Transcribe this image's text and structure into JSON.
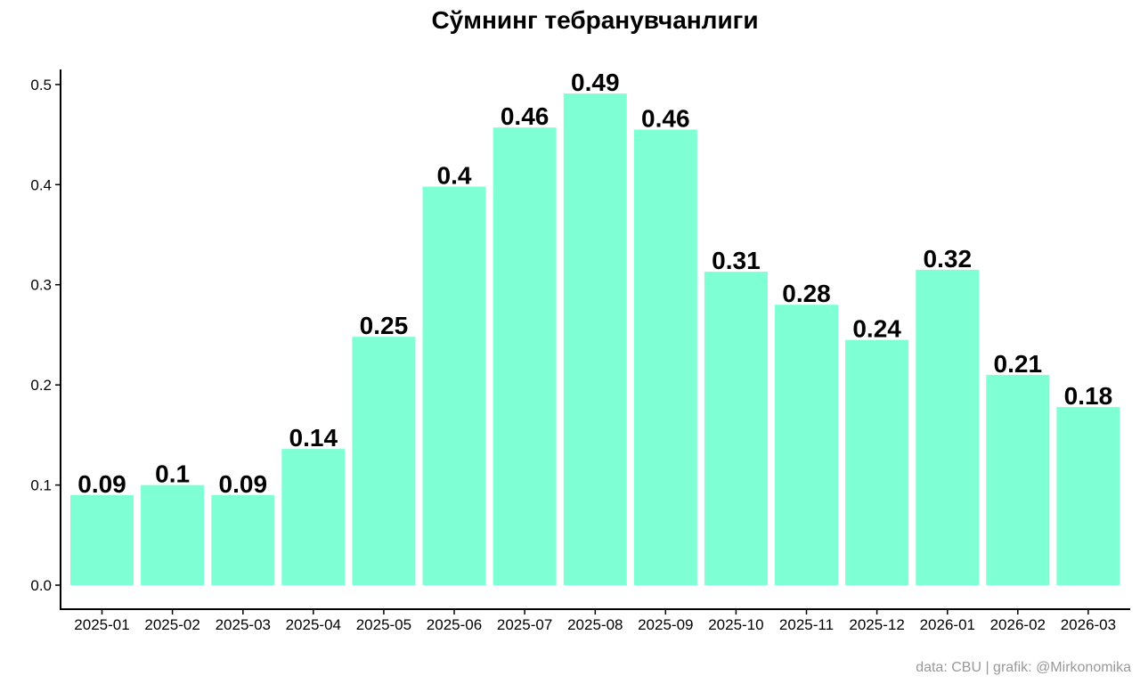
{
  "chart_data": {
    "type": "bar",
    "title": "Сўмнинг тебранувчанлиги",
    "xlabel": "",
    "ylabel": "",
    "categories": [
      "2025-01",
      "2025-02",
      "2025-03",
      "2025-04",
      "2025-05",
      "2025-06",
      "2025-07",
      "2025-08",
      "2025-09",
      "2025-10",
      "2025-11",
      "2025-12",
      "2026-01",
      "2026-02",
      "2026-03"
    ],
    "values": [
      0.09,
      0.1,
      0.09,
      0.136,
      0.248,
      0.398,
      0.457,
      0.491,
      0.455,
      0.313,
      0.28,
      0.245,
      0.315,
      0.21,
      0.178
    ],
    "data_labels": [
      "0.09",
      "0.1",
      "0.09",
      "0.14",
      "0.25",
      "0.4",
      "0.46",
      "0.49",
      "0.46",
      "0.31",
      "0.28",
      "0.24",
      "0.32",
      "0.21",
      "0.18"
    ],
    "y_ticks": [
      0.0,
      0.1,
      0.2,
      0.3,
      0.4,
      0.5
    ],
    "y_tick_labels": [
      "0.0",
      "0.1",
      "0.2",
      "0.3",
      "0.4",
      "0.5"
    ],
    "ylim": [
      -0.024,
      0.515
    ],
    "grid": false,
    "legend": "none",
    "bar_color": "#7FFFD4",
    "caption": "data: CBU | grafik: @Mirkonomika"
  }
}
